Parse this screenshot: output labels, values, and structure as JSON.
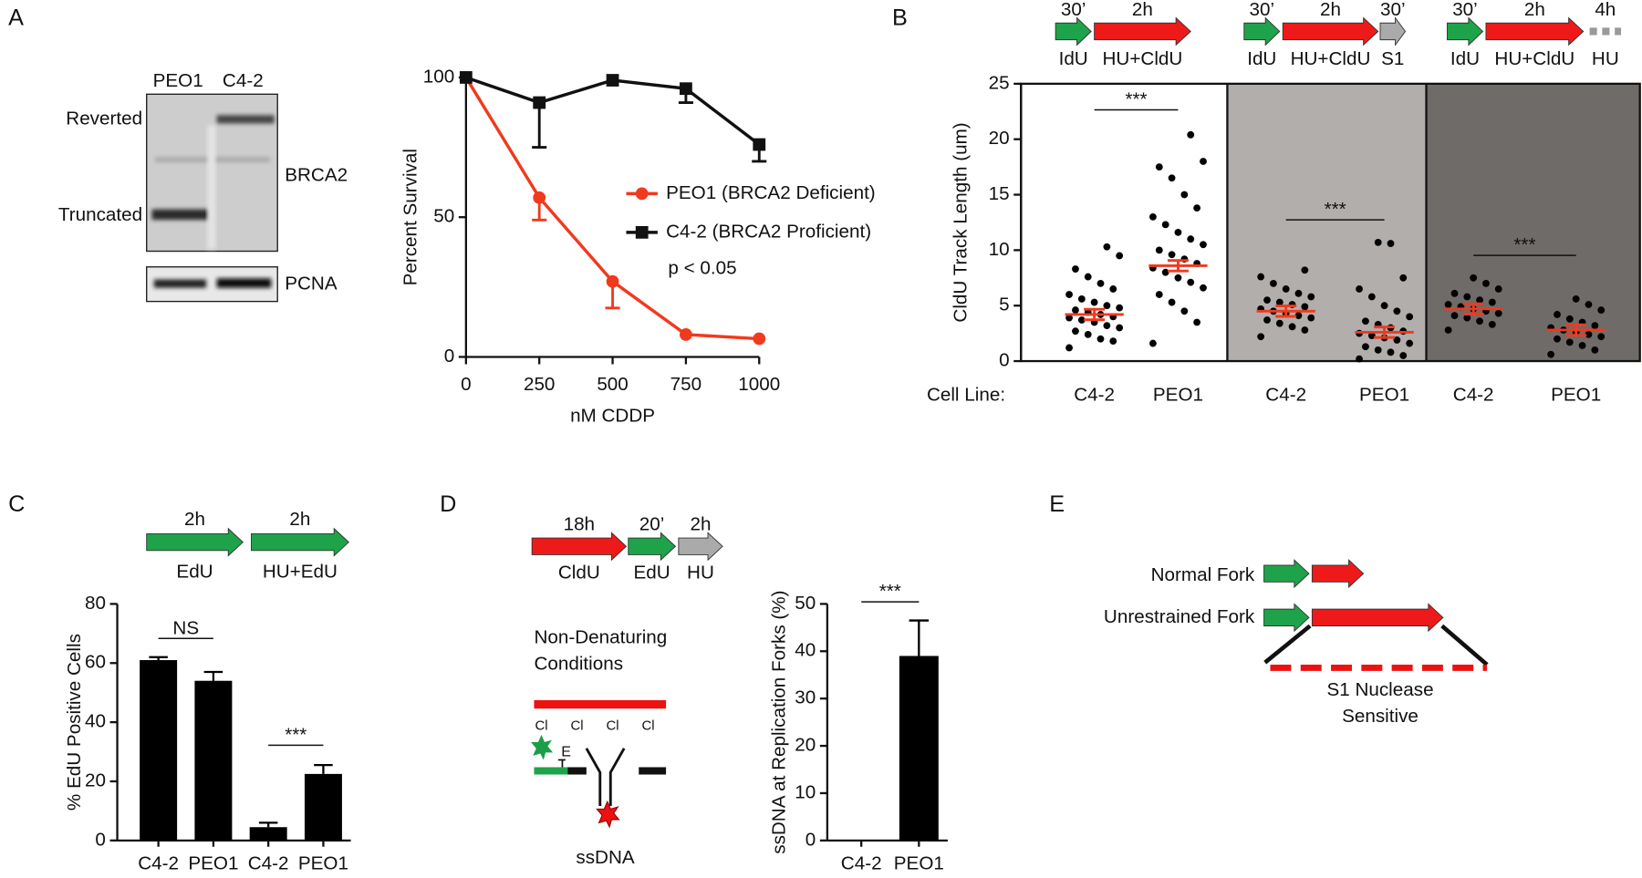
{
  "panel_labels": [
    "A",
    "B",
    "C",
    "D",
    "E"
  ],
  "blot": {
    "lanes": [
      "PEO1",
      "C4-2"
    ],
    "bands": [
      "Reverted",
      "Truncated"
    ],
    "protein": "BRCA2",
    "loading_control": "PCNA"
  },
  "chart_data": [
    {
      "type": "line",
      "xlabel": "nM CDDP",
      "ylabel": "Percent Survival",
      "x": [
        0,
        250,
        500,
        750,
        1000
      ],
      "xlim": [
        0,
        1000
      ],
      "xticks": [
        0,
        250,
        500,
        750,
        1000
      ],
      "ylim": [
        0,
        100
      ],
      "yticks": [
        0,
        50,
        100
      ],
      "series": [
        {
          "name": "PEO1 (BRCA2 Deficient)",
          "color": "#f03a1e",
          "marker": "circle",
          "values": [
            100,
            57,
            27,
            8,
            6.5
          ],
          "errors": [
            0,
            8,
            9.5,
            0,
            0
          ]
        },
        {
          "name": "C4-2 (BRCA2 Proficient)",
          "color": "#111111",
          "marker": "square",
          "values": [
            100,
            91,
            99,
            96,
            76
          ],
          "errors": [
            0,
            16,
            0,
            5,
            6
          ]
        }
      ],
      "annotation": "p < 0.05"
    },
    {
      "type": "dot-plot",
      "ylabel": "CldU Track Length (um)",
      "xlabel": "Cell Line:",
      "ylim": [
        0,
        25
      ],
      "yticks": [
        0,
        5,
        10,
        15,
        20,
        25
      ],
      "categories": [
        "C4-2",
        "PEO1",
        "C4-2",
        "PEO1",
        "C4-2",
        "PEO1"
      ],
      "shading": [
        "#ffffff",
        "#b1aeac",
        "#6e6b69"
      ],
      "groups": [
        {
          "mean": 4.2,
          "values": [
            1.2,
            1.8,
            2.0,
            2.4,
            2.7,
            3.0,
            3.2,
            3.5,
            3.7,
            3.9,
            4.0,
            4.2,
            4.4,
            4.6,
            4.8,
            5.0,
            5.3,
            5.6,
            6.0,
            6.5,
            7.0,
            7.6,
            8.3,
            9.5,
            10.3
          ]
        },
        {
          "mean": 8.6,
          "values": [
            1.6,
            3.5,
            4.5,
            5.3,
            6.0,
            6.6,
            7.1,
            7.5,
            8.0,
            8.4,
            8.8,
            9.2,
            9.6,
            10.0,
            10.5,
            11.0,
            11.6,
            12.3,
            13.0,
            13.8,
            15.0,
            16.5,
            17.5,
            18.0,
            20.4
          ]
        },
        {
          "mean": 4.5,
          "values": [
            2.2,
            2.8,
            3.1,
            3.4,
            3.7,
            3.9,
            4.1,
            4.3,
            4.5,
            4.7,
            4.9,
            5.1,
            5.3,
            5.5,
            5.8,
            6.1,
            6.5,
            7.0,
            7.6,
            8.2
          ]
        },
        {
          "mean": 2.6,
          "values": [
            0.2,
            0.5,
            0.8,
            1.0,
            1.3,
            1.6,
            1.9,
            2.1,
            2.3,
            2.5,
            2.7,
            3.0,
            3.3,
            3.6,
            4.0,
            4.5,
            5.0,
            5.8,
            6.5,
            7.5,
            10.6,
            10.7
          ]
        },
        {
          "mean": 4.7,
          "values": [
            2.8,
            3.3,
            3.6,
            3.9,
            4.1,
            4.3,
            4.5,
            4.7,
            4.9,
            5.1,
            5.3,
            5.5,
            5.8,
            6.1,
            6.5,
            7.0,
            7.5
          ]
        },
        {
          "mean": 2.8,
          "values": [
            0.6,
            1.0,
            1.4,
            1.7,
            2.0,
            2.2,
            2.4,
            2.6,
            2.8,
            3.0,
            3.2,
            3.5,
            3.8,
            4.2,
            4.6,
            5.1,
            5.6
          ]
        }
      ],
      "significance": [
        {
          "label": "***",
          "from": 0,
          "to": 1
        },
        {
          "label": "***",
          "from": 2,
          "to": 3
        },
        {
          "label": "***",
          "from": 4,
          "to": 5
        }
      ]
    },
    {
      "type": "bar",
      "ylabel": "% EdU Positive Cells",
      "categories": [
        "C4-2",
        "PEO1",
        "C4-2",
        "PEO1"
      ],
      "values": [
        61,
        54,
        4.5,
        22.5
      ],
      "errors": [
        1,
        3,
        1.5,
        3
      ],
      "color": "#000000",
      "ylim": [
        0,
        80
      ],
      "yticks": [
        0,
        20,
        40,
        60,
        80
      ],
      "significance": [
        {
          "label": "NS",
          "from": 0,
          "to": 1
        },
        {
          "label": "***",
          "from": 2,
          "to": 3
        }
      ]
    },
    {
      "type": "bar",
      "ylabel": "ssDNA at Replication Forks (%)",
      "categories": [
        "C4-2",
        "PEO1"
      ],
      "values": [
        0,
        39
      ],
      "errors": [
        0,
        7.5
      ],
      "color": "#000000",
      "ylim": [
        0,
        50
      ],
      "yticks": [
        0,
        10,
        20,
        30,
        40,
        50
      ],
      "significance": [
        {
          "label": "***",
          "from": 0,
          "to": 1
        }
      ]
    }
  ],
  "protocols": {
    "B": [
      {
        "durations": [
          "30’",
          "2h"
        ],
        "treatments": [
          "IdU",
          "HU+CldU"
        ]
      },
      {
        "durations": [
          "30’",
          "2h",
          "30’"
        ],
        "treatments": [
          "IdU",
          "HU+CldU",
          "S1"
        ]
      },
      {
        "durations": [
          "30’",
          "2h",
          "4h"
        ],
        "treatments": [
          "IdU",
          "HU+CldU",
          "HU"
        ]
      }
    ],
    "C": [
      {
        "durations": [
          "2h",
          "2h"
        ],
        "treatments": [
          "EdU",
          "HU+EdU"
        ]
      }
    ],
    "D": [
      {
        "durations": [
          "18h",
          "20’",
          "2h"
        ],
        "treatments": [
          "CldU",
          "EdU",
          "HU"
        ]
      }
    ]
  },
  "diagram_D": {
    "condition": [
      "Non-Denaturing",
      "Conditions"
    ],
    "labels": [
      "Cl",
      "Cl",
      "Cl",
      "Cl"
    ],
    "edu_label": "E",
    "product": "ssDNA"
  },
  "diagram_E": {
    "forks": [
      "Normal Fork",
      "Unrestrained Fork"
    ],
    "region": [
      "S1 Nuclease",
      "Sensitive"
    ]
  }
}
